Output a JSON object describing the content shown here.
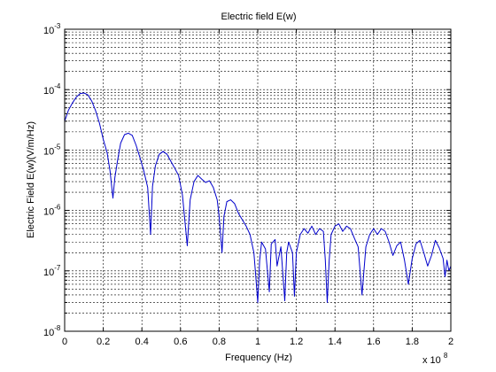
{
  "chart_data": {
    "type": "line",
    "title": "Electric field E(w)",
    "xlabel": "Frequency (Hz)",
    "ylabel": "Electric Field E(w)(V/m/Hz)",
    "x_multiplier": {
      "base": "x 10",
      "exponent": "8"
    },
    "xlim": [
      0,
      2
    ],
    "ylim": [
      1e-08,
      0.001
    ],
    "yscale": "log",
    "grid": true,
    "x_ticks": [
      "0",
      "0.2",
      "0.4",
      "0.6",
      "0.8",
      "1",
      "1.2",
      "1.4",
      "1.6",
      "1.8",
      "2"
    ],
    "y_ticks": [
      {
        "base": "10",
        "exponent": "-8"
      },
      {
        "base": "10",
        "exponent": "-7"
      },
      {
        "base": "10",
        "exponent": "-6"
      },
      {
        "base": "10",
        "exponent": "-5"
      },
      {
        "base": "10",
        "exponent": "-4"
      },
      {
        "base": "10",
        "exponent": "-3"
      }
    ],
    "series": [
      {
        "color": "#0000cc",
        "points": [
          [
            0.0,
            3e-05
          ],
          [
            0.02,
            4.6e-05
          ],
          [
            0.04,
            6e-05
          ],
          [
            0.06,
            7.5e-05
          ],
          [
            0.08,
            8.6e-05
          ],
          [
            0.1,
            8.8e-05
          ],
          [
            0.12,
            8.2e-05
          ],
          [
            0.14,
            6.5e-05
          ],
          [
            0.16,
            4.5e-05
          ],
          [
            0.18,
            2.8e-05
          ],
          [
            0.2,
            1.5e-05
          ],
          [
            0.22,
            9e-06
          ],
          [
            0.235,
            4.5e-06
          ],
          [
            0.25,
            1.6e-06
          ],
          [
            0.26,
            3.5e-06
          ],
          [
            0.275,
            7e-06
          ],
          [
            0.29,
            1.3e-05
          ],
          [
            0.31,
            1.8e-05
          ],
          [
            0.33,
            1.9e-05
          ],
          [
            0.35,
            1.75e-05
          ],
          [
            0.37,
            1.2e-05
          ],
          [
            0.39,
            7.5e-06
          ],
          [
            0.41,
            4.5e-06
          ],
          [
            0.43,
            2.4e-06
          ],
          [
            0.445,
            4e-07
          ],
          [
            0.455,
            2.5e-06
          ],
          [
            0.47,
            5.5e-06
          ],
          [
            0.49,
            8.5e-06
          ],
          [
            0.51,
            9.5e-06
          ],
          [
            0.53,
            8.5e-06
          ],
          [
            0.55,
            6.5e-06
          ],
          [
            0.57,
            5e-06
          ],
          [
            0.59,
            3.8e-06
          ],
          [
            0.61,
            1.8e-06
          ],
          [
            0.635,
            2.6e-07
          ],
          [
            0.65,
            1.5e-06
          ],
          [
            0.67,
            3e-06
          ],
          [
            0.69,
            3.8e-06
          ],
          [
            0.71,
            3.3e-06
          ],
          [
            0.73,
            2.9e-06
          ],
          [
            0.75,
            3.1e-06
          ],
          [
            0.77,
            2.4e-06
          ],
          [
            0.79,
            1.5e-06
          ],
          [
            0.8,
            8e-07
          ],
          [
            0.815,
            2e-07
          ],
          [
            0.825,
            8e-07
          ],
          [
            0.84,
            1.4e-06
          ],
          [
            0.86,
            1.5e-06
          ],
          [
            0.88,
            1.3e-06
          ],
          [
            0.9,
            9e-07
          ],
          [
            0.92,
            7e-07
          ],
          [
            0.94,
            5.5e-07
          ],
          [
            0.96,
            4e-07
          ],
          [
            0.98,
            2e-07
          ],
          [
            0.99,
            8e-08
          ],
          [
            1.0,
            3e-08
          ],
          [
            1.01,
            1.5e-07
          ],
          [
            1.02,
            3e-07
          ],
          [
            1.04,
            2.3e-07
          ],
          [
            1.06,
            4.5e-08
          ],
          [
            1.07,
            2.8e-07
          ],
          [
            1.09,
            3.3e-07
          ],
          [
            1.1,
            1.2e-07
          ],
          [
            1.12,
            2.5e-07
          ],
          [
            1.14,
            3.2e-08
          ],
          [
            1.15,
            2e-07
          ],
          [
            1.16,
            3e-07
          ],
          [
            1.18,
            2e-07
          ],
          [
            1.19,
            3.8e-08
          ],
          [
            1.2,
            2e-07
          ],
          [
            1.22,
            4e-07
          ],
          [
            1.24,
            5e-07
          ],
          [
            1.26,
            4.2e-07
          ],
          [
            1.28,
            5.5e-07
          ],
          [
            1.3,
            4e-07
          ],
          [
            1.32,
            5e-07
          ],
          [
            1.34,
            4.5e-07
          ],
          [
            1.35,
            1.5e-07
          ],
          [
            1.36,
            3e-08
          ],
          [
            1.37,
            1.5e-07
          ],
          [
            1.38,
            4e-07
          ],
          [
            1.4,
            5.5e-07
          ],
          [
            1.42,
            6e-07
          ],
          [
            1.44,
            4.5e-07
          ],
          [
            1.46,
            5.5e-07
          ],
          [
            1.48,
            5e-07
          ],
          [
            1.5,
            3.5e-07
          ],
          [
            1.52,
            2.5e-07
          ],
          [
            1.54,
            4e-08
          ],
          [
            1.56,
            2.5e-07
          ],
          [
            1.58,
            4e-07
          ],
          [
            1.6,
            5e-07
          ],
          [
            1.62,
            4e-07
          ],
          [
            1.64,
            5e-07
          ],
          [
            1.66,
            4.5e-07
          ],
          [
            1.68,
            3e-07
          ],
          [
            1.7,
            1.8e-07
          ],
          [
            1.72,
            2.6e-07
          ],
          [
            1.74,
            3e-07
          ],
          [
            1.76,
            1.5e-07
          ],
          [
            1.78,
            6e-08
          ],
          [
            1.8,
            1.6e-07
          ],
          [
            1.82,
            2.8e-07
          ],
          [
            1.84,
            3.2e-07
          ],
          [
            1.86,
            2e-07
          ],
          [
            1.88,
            1.2e-07
          ],
          [
            1.9,
            1.8e-07
          ],
          [
            1.92,
            3.2e-07
          ],
          [
            1.94,
            2.4e-07
          ],
          [
            1.96,
            1.6e-07
          ],
          [
            1.97,
            8e-08
          ],
          [
            1.98,
            1.5e-07
          ],
          [
            1.99,
            1e-07
          ],
          [
            2.0,
            1.2e-07
          ]
        ]
      }
    ]
  }
}
